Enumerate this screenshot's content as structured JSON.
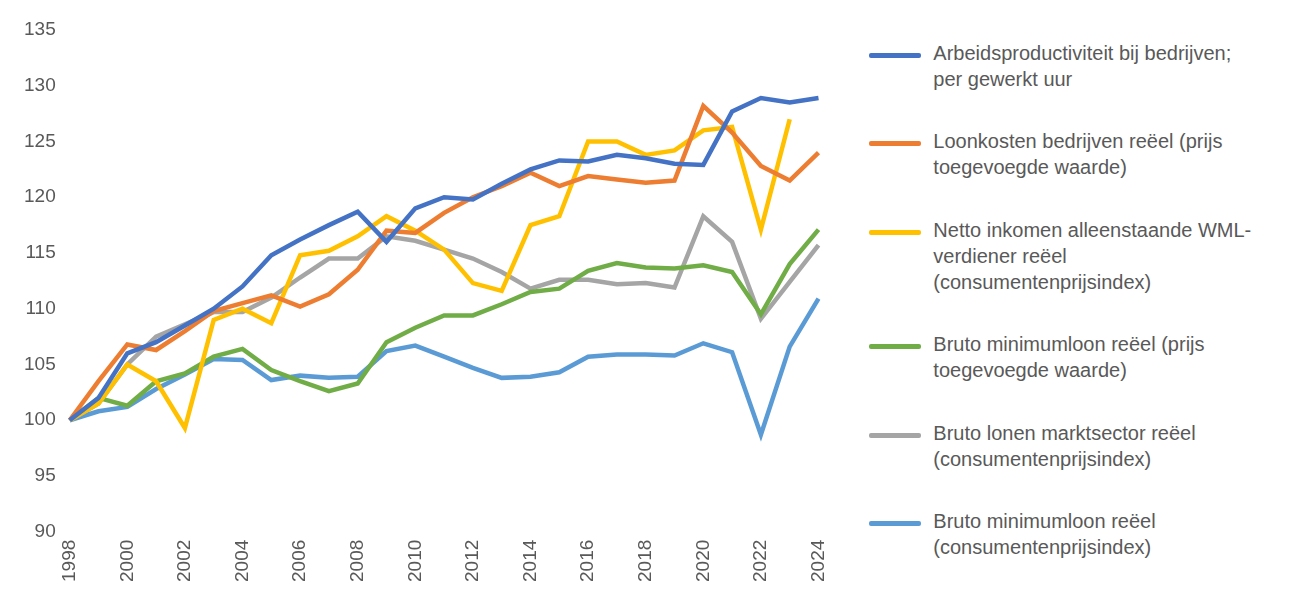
{
  "chart_data": {
    "type": "line",
    "categories": [
      "1998",
      null,
      "2000",
      null,
      "2002",
      null,
      "2004",
      null,
      "2006",
      null,
      "2008",
      null,
      "2010",
      null,
      "2012",
      null,
      "2014",
      null,
      "2016",
      null,
      "2018",
      null,
      "2020",
      null,
      "2022",
      null,
      "2024"
    ],
    "series": [
      {
        "name": "Arbeidsproductiviteit bij bedrijven; per gewerkt uur",
        "color": "#4472c4",
        "values": [
          100,
          102,
          106,
          107,
          108.5,
          110,
          112,
          114.8,
          116.2,
          117.5,
          118.7,
          116,
          119,
          120,
          119.8,
          121.2,
          122.5,
          123.3,
          123.2,
          123.8,
          123.5,
          123,
          122.9,
          127.7,
          128.9,
          128.5,
          128.9
        ]
      },
      {
        "name": "Loonkosten bedrijven reëel (prijs toegevoegde waarde)",
        "color": "#ed7d31",
        "values": [
          100,
          103.5,
          106.8,
          106.3,
          108,
          109.8,
          110.5,
          111.2,
          110.2,
          111.3,
          113.5,
          117,
          116.8,
          118.6,
          120,
          121,
          122.2,
          121,
          121.9,
          121.6,
          121.3,
          121.5,
          128.2,
          125.8,
          122.8,
          121.5,
          124
        ]
      },
      {
        "name": "Netto inkomen alleenstaande WML-verdiener reëel (consumentenprijsindex)",
        "color": "#ffc000",
        "values": [
          100,
          101.5,
          105,
          103.5,
          99.3,
          109,
          110,
          108.7,
          114.8,
          115.2,
          116.5,
          118.3,
          117,
          115.3,
          112.3,
          111.6,
          117.5,
          118.3,
          125,
          125,
          123.8,
          124.2,
          126,
          126.3,
          117.1,
          127,
          null
        ]
      },
      {
        "name": "Bruto minimumloon reëel (prijs toegevoegde waarde)",
        "color": "#70ad47",
        "values": [
          100,
          102,
          101.3,
          103.5,
          104.2,
          105.7,
          106.4,
          104.5,
          103.5,
          102.6,
          103.3,
          107,
          108.3,
          109.4,
          109.4,
          110.4,
          111.5,
          111.8,
          113.4,
          114.1,
          113.7,
          113.6,
          113.9,
          113.3,
          109.5,
          114,
          117.1
        ]
      },
      {
        "name": "Bruto lonen marktsector reëel (consumentenprijsindex)",
        "color": "#a5a5a5",
        "values": [
          100,
          101.5,
          105,
          107.5,
          108.6,
          109.7,
          109.7,
          111,
          112.8,
          114.5,
          114.5,
          116.5,
          116.1,
          115.3,
          114.5,
          113.3,
          111.8,
          112.6,
          112.6,
          112.2,
          112.3,
          111.9,
          118.3,
          116,
          109.1,
          112.4,
          115.7
        ]
      },
      {
        "name": "Bruto minimumloon reëel (consumentenprijsindex)",
        "color": "#5b9bd5",
        "values": [
          100,
          100.8,
          101.2,
          102.8,
          104.1,
          105.5,
          105.4,
          103.6,
          104,
          103.8,
          103.9,
          106.2,
          106.7,
          105.7,
          104.7,
          103.8,
          103.9,
          104.3,
          105.7,
          105.9,
          105.9,
          105.8,
          106.9,
          106.1,
          98.7,
          106.6,
          110.9
        ]
      }
    ],
    "ylim": [
      90,
      135
    ],
    "yticks": [
      90,
      95,
      100,
      105,
      110,
      115,
      120,
      125,
      130,
      135
    ],
    "grid": false,
    "legend": "right"
  }
}
